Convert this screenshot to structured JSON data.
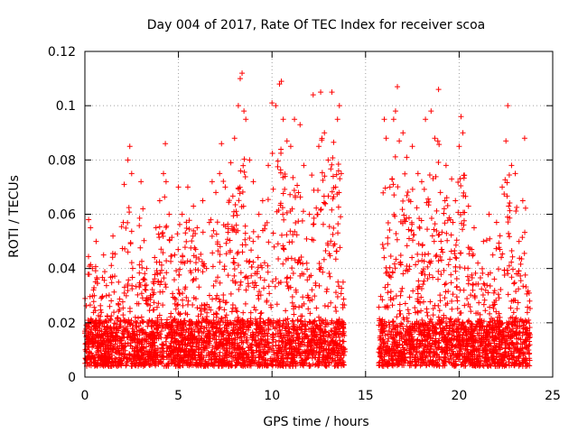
{
  "chart_data": {
    "type": "scatter",
    "title": "Day 004 of 2017, Rate Of TEC Index for receiver scoa",
    "xlabel": "GPS time / hours",
    "ylabel": "ROTI / TECUs",
    "xlim": [
      0,
      25
    ],
    "ylim": [
      0,
      0.12
    ],
    "xticks": [
      0,
      5,
      10,
      15,
      20,
      25
    ],
    "xtick_labels": [
      "0",
      "5",
      "10",
      "15",
      "20",
      "25"
    ],
    "yticks": [
      0,
      0.02,
      0.04,
      0.06,
      0.08,
      0.1,
      0.12
    ],
    "ytick_labels": [
      "0",
      "0.02",
      "0.04",
      "0.06",
      "0.08",
      "0.1",
      "0.12"
    ],
    "grid": true,
    "marker": "plus",
    "color": "#ff0000",
    "data_gap_hours": [
      13.9,
      15.7
    ],
    "series": [
      {
        "name": "ROTI",
        "points": [
          [
            0.1,
            0.012
          ],
          [
            0.2,
            0.058
          ],
          [
            0.3,
            0.055
          ],
          [
            0.4,
            0.04
          ],
          [
            0.5,
            0.03
          ],
          [
            0.6,
            0.05
          ],
          [
            0.8,
            0.02
          ],
          [
            1.0,
            0.045
          ],
          [
            1.2,
            0.015
          ],
          [
            1.5,
            0.052
          ],
          [
            1.8,
            0.035
          ],
          [
            2.1,
            0.071
          ],
          [
            2.3,
            0.08
          ],
          [
            2.4,
            0.085
          ],
          [
            2.5,
            0.075
          ],
          [
            2.7,
            0.02
          ],
          [
            3.0,
            0.072
          ],
          [
            3.1,
            0.062
          ],
          [
            3.3,
            0.04
          ],
          [
            3.5,
            0.03
          ],
          [
            3.8,
            0.055
          ],
          [
            4.0,
            0.065
          ],
          [
            4.2,
            0.075
          ],
          [
            4.3,
            0.086
          ],
          [
            4.5,
            0.06
          ],
          [
            4.8,
            0.045
          ],
          [
            5.0,
            0.07
          ],
          [
            5.2,
            0.06
          ],
          [
            5.5,
            0.07
          ],
          [
            5.8,
            0.063
          ],
          [
            6.0,
            0.055
          ],
          [
            6.3,
            0.065
          ],
          [
            6.5,
            0.04
          ],
          [
            6.8,
            0.072
          ],
          [
            7.0,
            0.068
          ],
          [
            7.2,
            0.075
          ],
          [
            7.3,
            0.086
          ],
          [
            7.5,
            0.07
          ],
          [
            7.8,
            0.079
          ],
          [
            8.0,
            0.088
          ],
          [
            8.2,
            0.1
          ],
          [
            8.3,
            0.11
          ],
          [
            8.4,
            0.112
          ],
          [
            8.5,
            0.098
          ],
          [
            8.6,
            0.095
          ],
          [
            8.8,
            0.08
          ],
          [
            9.0,
            0.072
          ],
          [
            9.3,
            0.06
          ],
          [
            9.5,
            0.065
          ],
          [
            9.8,
            0.078
          ],
          [
            10.0,
            0.101
          ],
          [
            10.2,
            0.1
          ],
          [
            10.4,
            0.108
          ],
          [
            10.5,
            0.109
          ],
          [
            10.6,
            0.095
          ],
          [
            10.8,
            0.087
          ],
          [
            11.0,
            0.085
          ],
          [
            11.2,
            0.095
          ],
          [
            11.5,
            0.093
          ],
          [
            11.7,
            0.078
          ],
          [
            12.0,
            0.06
          ],
          [
            12.2,
            0.104
          ],
          [
            12.5,
            0.085
          ],
          [
            12.6,
            0.105
          ],
          [
            12.8,
            0.09
          ],
          [
            13.0,
            0.08
          ],
          [
            13.2,
            0.105
          ],
          [
            13.4,
            0.07
          ],
          [
            13.5,
            0.095
          ],
          [
            13.6,
            0.1
          ],
          [
            13.7,
            0.075
          ],
          [
            13.8,
            0.035
          ],
          [
            15.8,
            0.02
          ],
          [
            16.0,
            0.095
          ],
          [
            16.1,
            0.088
          ],
          [
            16.3,
            0.07
          ],
          [
            16.5,
            0.095
          ],
          [
            16.6,
            0.098
          ],
          [
            16.7,
            0.107
          ],
          [
            16.8,
            0.087
          ],
          [
            17.0,
            0.09
          ],
          [
            17.2,
            0.081
          ],
          [
            17.5,
            0.085
          ],
          [
            17.8,
            0.075
          ],
          [
            18.0,
            0.072
          ],
          [
            18.2,
            0.095
          ],
          [
            18.5,
            0.098
          ],
          [
            18.7,
            0.088
          ],
          [
            18.9,
            0.106
          ],
          [
            19.0,
            0.068
          ],
          [
            19.3,
            0.078
          ],
          [
            19.6,
            0.073
          ],
          [
            19.8,
            0.065
          ],
          [
            20.0,
            0.085
          ],
          [
            20.1,
            0.096
          ],
          [
            20.2,
            0.09
          ],
          [
            20.5,
            0.063
          ],
          [
            20.8,
            0.055
          ],
          [
            21.0,
            0.042
          ],
          [
            21.3,
            0.05
          ],
          [
            21.6,
            0.06
          ],
          [
            21.8,
            0.045
          ],
          [
            22.0,
            0.057
          ],
          [
            22.3,
            0.07
          ],
          [
            22.5,
            0.087
          ],
          [
            22.6,
            0.1
          ],
          [
            22.8,
            0.078
          ],
          [
            23.0,
            0.075
          ],
          [
            23.2,
            0.05
          ],
          [
            23.4,
            0.065
          ],
          [
            23.5,
            0.088
          ],
          [
            23.6,
            0.005
          ]
        ]
      }
    ]
  }
}
